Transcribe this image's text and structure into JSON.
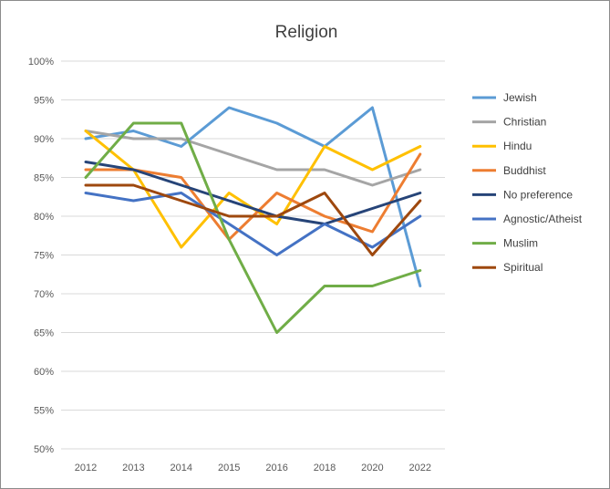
{
  "chart_data": {
    "type": "line",
    "title": "Religion",
    "xlabel": "",
    "ylabel": "",
    "categories": [
      "2012",
      "2013",
      "2014",
      "2015",
      "2016",
      "2018",
      "2020",
      "2022"
    ],
    "y_ticks": [
      "50%",
      "55%",
      "60%",
      "65%",
      "70%",
      "75%",
      "80%",
      "85%",
      "90%",
      "95%",
      "100%"
    ],
    "ylim": [
      50,
      100
    ],
    "grid": true,
    "legend_position": "right",
    "series": [
      {
        "name": "Jewish",
        "color": "#5b9bd5",
        "values": [
          90,
          91,
          89,
          94,
          92,
          89,
          94,
          71
        ]
      },
      {
        "name": "Christian",
        "color": "#a5a5a5",
        "values": [
          91,
          90,
          90,
          88,
          86,
          86,
          84,
          86
        ]
      },
      {
        "name": "Hindu",
        "color": "#ffc000",
        "values": [
          91,
          86,
          76,
          83,
          79,
          89,
          86,
          89
        ]
      },
      {
        "name": "Buddhist",
        "color": "#ed7d31",
        "values": [
          86,
          86,
          85,
          77,
          83,
          80,
          78,
          88
        ]
      },
      {
        "name": "No preference",
        "color": "#264478",
        "values": [
          87,
          86,
          84,
          82,
          80,
          79,
          81,
          83
        ]
      },
      {
        "name": "Agnostic/Atheist",
        "color": "#4472c4",
        "values": [
          83,
          82,
          83,
          79,
          75,
          79,
          76,
          80
        ]
      },
      {
        "name": "Muslim",
        "color": "#70ad47",
        "values": [
          85,
          92,
          92,
          77,
          65,
          71,
          71,
          73
        ]
      },
      {
        "name": "Spiritual",
        "color": "#9e480e",
        "values": [
          84,
          84,
          82,
          80,
          80,
          83,
          75,
          82
        ]
      }
    ]
  }
}
